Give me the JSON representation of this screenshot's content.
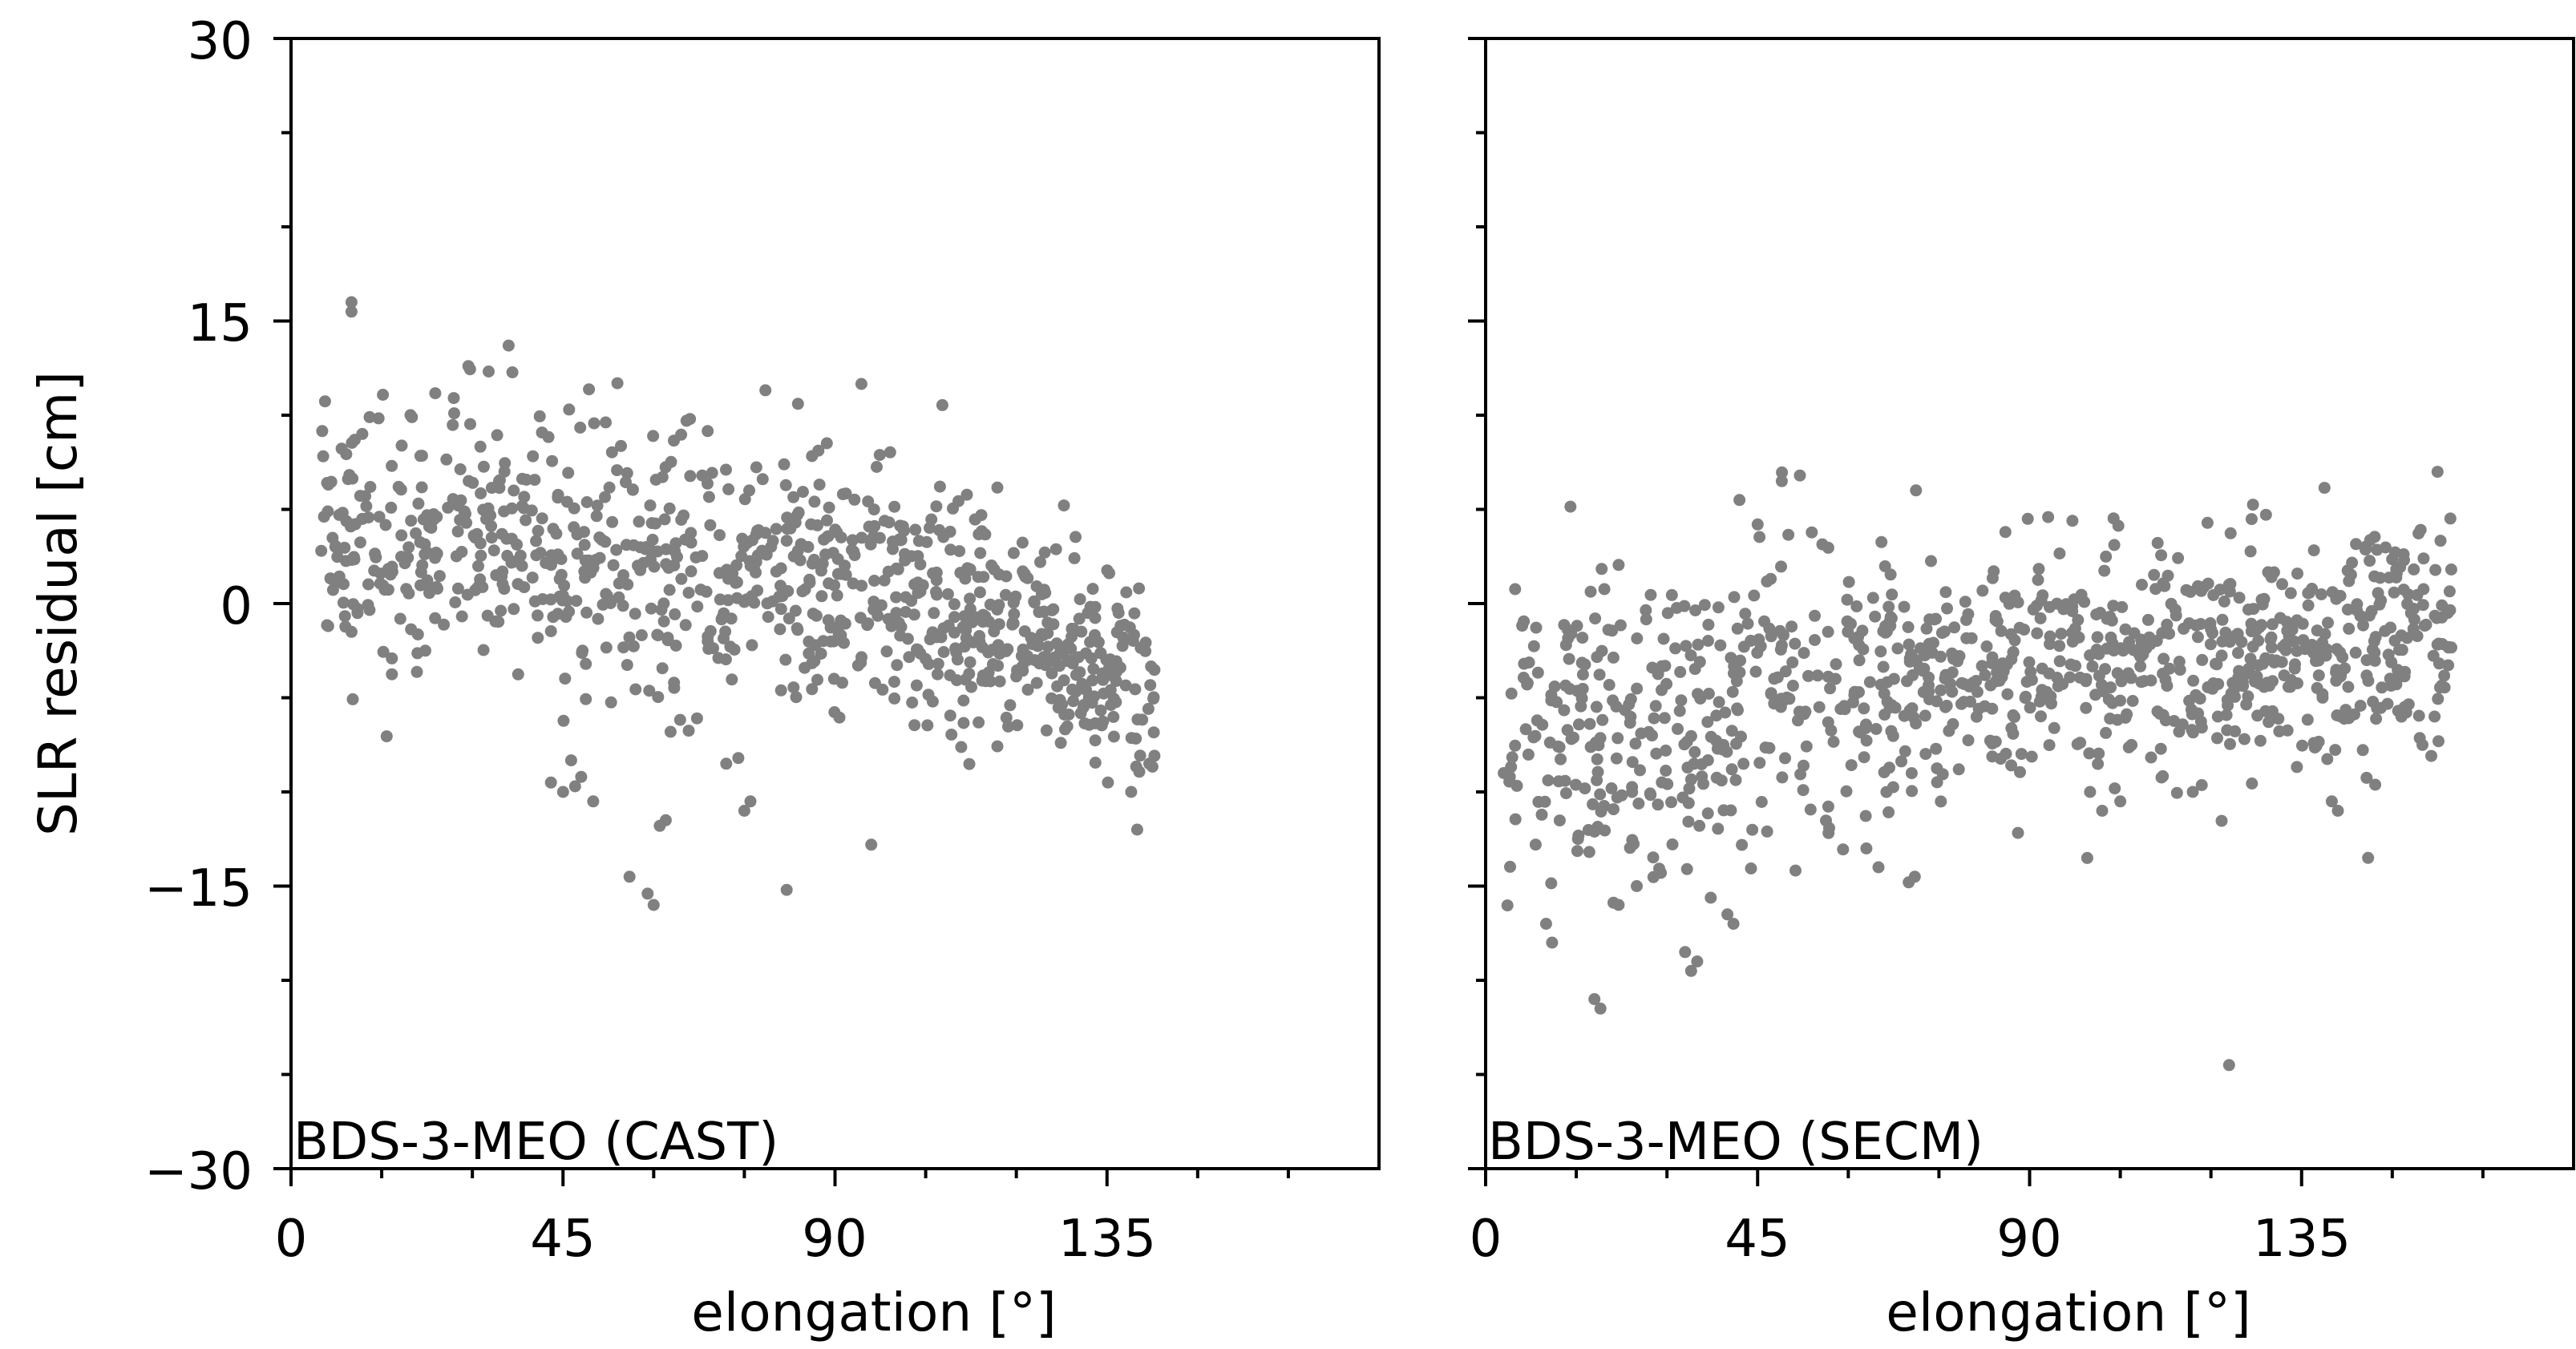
{
  "chart_data": [
    {
      "type": "scatter",
      "label": "BDS-3-MEO (CAST)",
      "xlabel": "elongation [°]",
      "ylabel": "SLR residual [cm]",
      "xlim": [
        0,
        180
      ],
      "ylim": [
        -30,
        30
      ],
      "xticks": [
        "0",
        "45",
        "90",
        "135"
      ],
      "yticks": [
        "30",
        "15",
        "0",
        "−15",
        "−30"
      ],
      "marker_color": "#808080",
      "trend": {
        "x_range": [
          5,
          143
        ],
        "center": [
          [
            5,
            3.5
          ],
          [
            20,
            3.5
          ],
          [
            40,
            3
          ],
          [
            60,
            2
          ],
          [
            80,
            1.5
          ],
          [
            95,
            0.5
          ],
          [
            110,
            -1
          ],
          [
            125,
            -2
          ],
          [
            143,
            -5
          ]
        ],
        "spread": [
          [
            5,
            3.5
          ],
          [
            40,
            3.5
          ],
          [
            70,
            3.8
          ],
          [
            110,
            3.3
          ],
          [
            143,
            2.2
          ]
        ],
        "count": 950
      },
      "points": [
        [
          10,
          16
        ],
        [
          10,
          15.5
        ],
        [
          36,
          13.7
        ],
        [
          54,
          11.7
        ],
        [
          66,
          9.8
        ],
        [
          13,
          9.9
        ],
        [
          20,
          9.9
        ],
        [
          27,
          10.1
        ],
        [
          46,
          10.3
        ],
        [
          5,
          2.8
        ],
        [
          10,
          -1.5
        ],
        [
          11,
          -0.5
        ],
        [
          60,
          -16
        ],
        [
          59,
          -15.4
        ],
        [
          56,
          -14.5
        ],
        [
          82,
          -15.2
        ],
        [
          61,
          -11.8
        ],
        [
          62,
          -11.5
        ],
        [
          75,
          -11
        ],
        [
          76,
          -10.5
        ],
        [
          96,
          -12.8
        ],
        [
          140,
          -12
        ],
        [
          139,
          -10
        ],
        [
          142,
          -8.5
        ],
        [
          43,
          -9.5
        ],
        [
          45,
          -10
        ],
        [
          47,
          -9.7
        ],
        [
          72,
          -8.5
        ],
        [
          74,
          -8.2
        ],
        [
          50,
          -10.5
        ],
        [
          48,
          -9.2
        ]
      ]
    },
    {
      "type": "scatter",
      "label": "BDS-3-MEO (SECM)",
      "xlabel": "elongation [°]",
      "ylabel": "",
      "xlim": [
        0,
        180
      ],
      "ylim": [
        -30,
        30
      ],
      "xticks": [
        "0",
        "45",
        "90",
        "135"
      ],
      "yticks": [],
      "marker_color": "#808080",
      "trend": {
        "x_range": [
          3,
          160
        ],
        "center": [
          [
            3,
            -7
          ],
          [
            20,
            -6
          ],
          [
            40,
            -5.5
          ],
          [
            60,
            -4
          ],
          [
            80,
            -3.5
          ],
          [
            100,
            -3
          ],
          [
            120,
            -2.5
          ],
          [
            140,
            -2
          ],
          [
            160,
            -1.5
          ]
        ],
        "spread": [
          [
            3,
            3.8
          ],
          [
            40,
            4
          ],
          [
            80,
            3.3
          ],
          [
            120,
            3.3
          ],
          [
            160,
            2.5
          ]
        ],
        "count": 1000
      },
      "points": [
        [
          3,
          -9
        ],
        [
          4,
          -9.2
        ],
        [
          10,
          -17
        ],
        [
          11,
          -18
        ],
        [
          18,
          -21
        ],
        [
          19,
          -21.5
        ],
        [
          35,
          -19
        ],
        [
          34,
          -19.5
        ],
        [
          33,
          -18.5
        ],
        [
          41,
          -17
        ],
        [
          40,
          -16.5
        ],
        [
          49,
          6.5
        ],
        [
          52,
          6.8
        ],
        [
          42,
          5.5
        ],
        [
          45,
          4.2
        ],
        [
          86,
          3.8
        ],
        [
          123,
          -24.5
        ],
        [
          146,
          -13.5
        ],
        [
          22,
          -16
        ],
        [
          25,
          -15
        ],
        [
          29,
          -14.3
        ],
        [
          63,
          -13
        ],
        [
          65,
          -14
        ],
        [
          70,
          -14.8
        ],
        [
          71,
          -14.5
        ],
        [
          100,
          -10
        ],
        [
          102,
          -11
        ],
        [
          105,
          -10.5
        ],
        [
          140,
          -10.5
        ],
        [
          141,
          -11
        ],
        [
          155,
          -7.5
        ],
        [
          157,
          -6
        ]
      ]
    }
  ]
}
